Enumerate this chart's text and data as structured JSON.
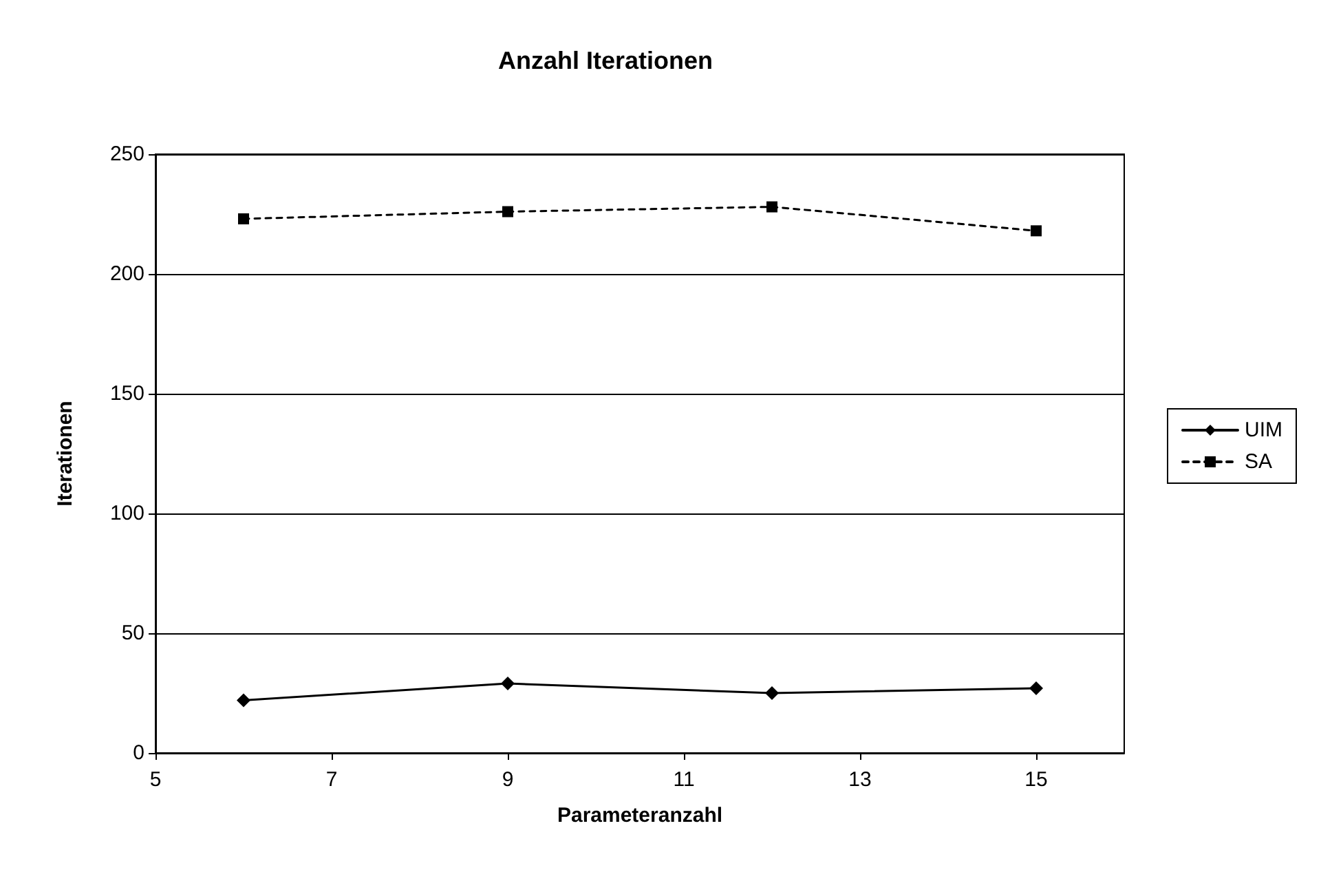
{
  "chart_data": {
    "type": "line",
    "title": "Anzahl Iterationen",
    "xlabel": "Parameteranzahl",
    "ylabel": "Iterationen",
    "x": [
      6,
      9,
      12,
      15
    ],
    "series": [
      {
        "name": "UIM",
        "color": "#000000",
        "values": [
          22,
          29,
          25,
          27
        ],
        "marker": "diamond",
        "line_style": "solid"
      },
      {
        "name": "SA",
        "color": "#000000",
        "values": [
          223,
          226,
          228,
          218
        ],
        "marker": "square",
        "line_style": "dashed"
      }
    ],
    "xlim": [
      5,
      16
    ],
    "xticks": [
      5,
      7,
      9,
      11,
      13,
      15
    ],
    "ylim": [
      0,
      250
    ],
    "yticks": [
      0,
      50,
      100,
      150,
      200,
      250
    ],
    "grid": "y",
    "legend": "right"
  }
}
